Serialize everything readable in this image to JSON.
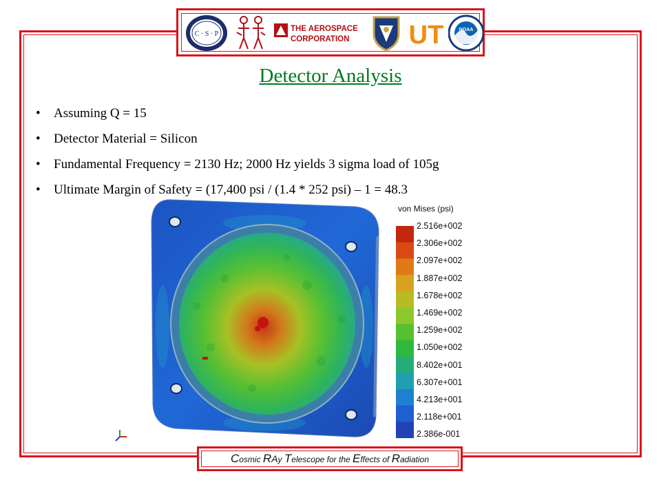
{
  "slide": {
    "title": "Detector Analysis",
    "bullets": [
      {
        "bullet": "•",
        "text": "Assuming Q = 15"
      },
      {
        "bullet": "•",
        "text": "Detector Material = Silicon"
      },
      {
        "bullet": "•",
        "text": "Fundamental Frequency = 2130 Hz; 2000 Hz yields 3 sigma load of 105g"
      },
      {
        "bullet": "•",
        "text": "Ultimate Margin of Safety = (17,400 psi / (1.4 * 252 psi) – 1 = 48.3"
      }
    ]
  },
  "logos": {
    "csp_letters": "C · S · P",
    "aerospace_line1": "THE AEROSPACE",
    "aerospace_line2": "CORPORATION",
    "ut_text": "UT",
    "noaa_text": "NOAA"
  },
  "figure": {
    "legend_title": "von Mises (psi)",
    "scale_labels": [
      "2.516e+002",
      "2.306e+002",
      "2.097e+002",
      "1.887e+002",
      "1.678e+002",
      "1.469e+002",
      "1.259e+002",
      "1.050e+002",
      "8.402e+001",
      "6.307e+001",
      "4.213e+001",
      "2.118e+001",
      "2.386e-001"
    ],
    "colors": {
      "scale": [
        "#c4260f",
        "#d84a12",
        "#e07a18",
        "#d6a21f",
        "#b8bb22",
        "#8cc82a",
        "#57c02f",
        "#2fb83e",
        "#24ad78",
        "#1f9fb0",
        "#1f80d0",
        "#1f5fd0",
        "#2342b4"
      ]
    }
  },
  "footer": {
    "c": "C",
    "osmic": "osmic ",
    "r": "R",
    "a": "A",
    "y": "y ",
    "t": "T",
    "elescope": "elescope ",
    "for_the": "for the ",
    "e": "E",
    "ffects": "ffects ",
    "of": "of ",
    "r2": "R",
    "adiation": "adiation"
  },
  "colors": {
    "frame_red": "#d8141b",
    "title_green": "#007a1f"
  }
}
